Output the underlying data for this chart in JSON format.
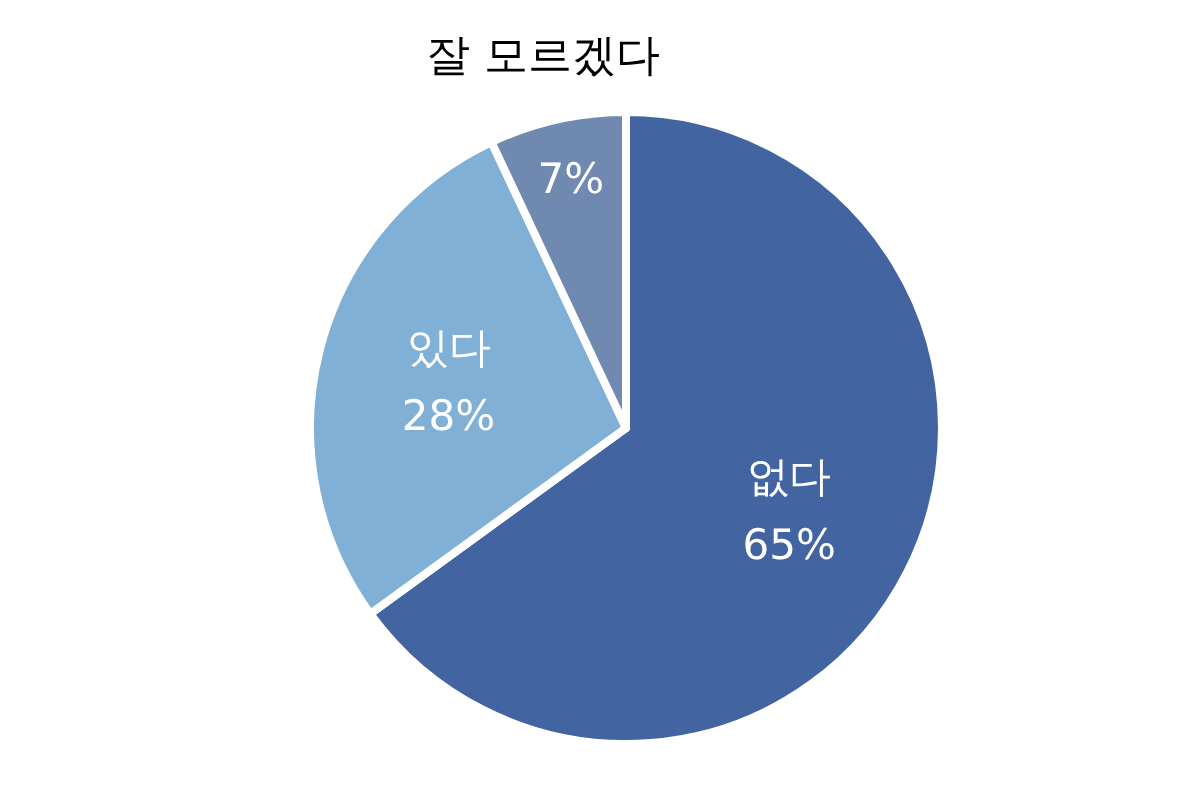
{
  "chart_data": {
    "type": "pie",
    "categories": [
      "없다",
      "있다",
      "잘 모르겠다"
    ],
    "values": [
      65,
      28,
      7
    ],
    "value_labels": [
      "65%",
      "28%",
      "7%"
    ],
    "colors": [
      "#4264a0",
      "#80b0d6",
      "#7089b0"
    ]
  }
}
